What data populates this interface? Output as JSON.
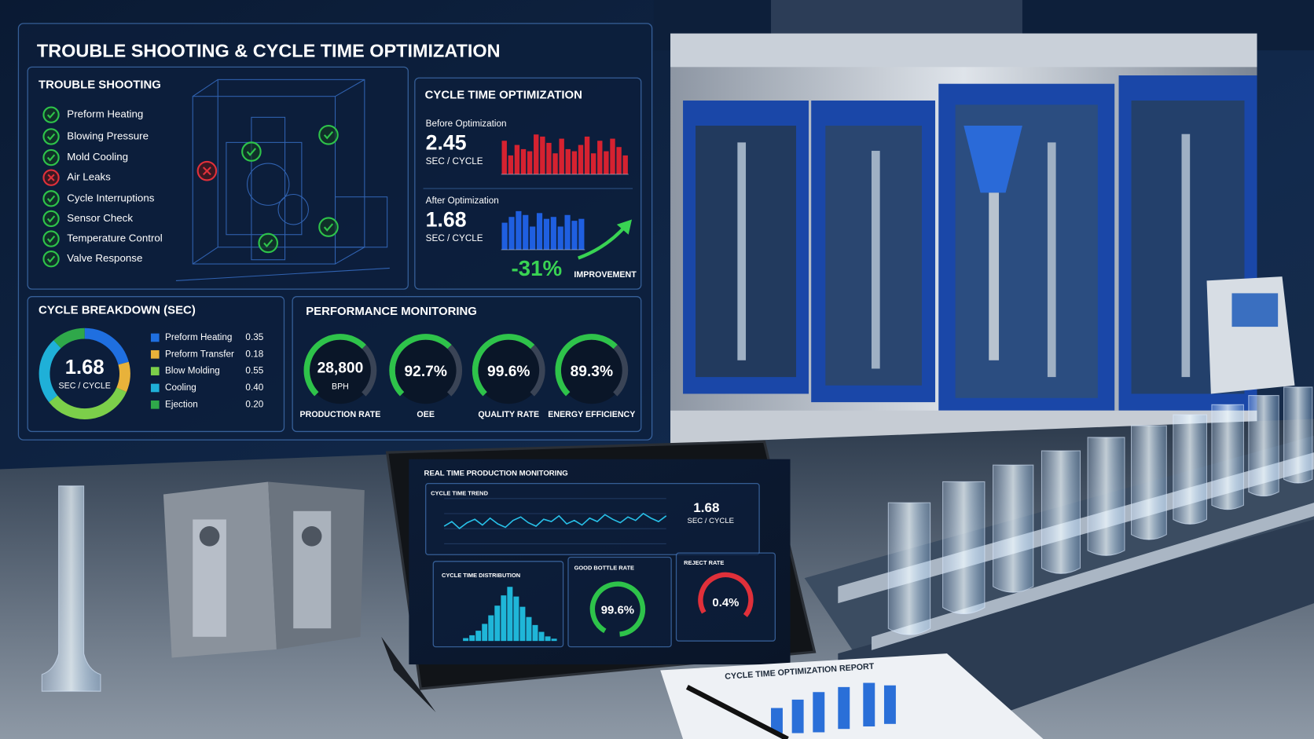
{
  "header": {
    "title": "TROUBLE SHOOTING & CYCLE TIME OPTIMIZATION"
  },
  "trouble_shooting": {
    "title": "TROUBLE SHOOTING",
    "items": [
      {
        "label": "Preform Heating",
        "status": "ok"
      },
      {
        "label": "Blowing Pressure",
        "status": "ok"
      },
      {
        "label": "Mold Cooling",
        "status": "ok"
      },
      {
        "label": "Air Leaks",
        "status": "fail"
      },
      {
        "label": "Cycle Interruptions",
        "status": "ok"
      },
      {
        "label": "Sensor Check",
        "status": "ok"
      },
      {
        "label": "Temperature Control",
        "status": "ok"
      },
      {
        "label": "Valve Response",
        "status": "ok"
      }
    ]
  },
  "cycle_time_optimization": {
    "title": "CYCLE TIME OPTIMIZATION",
    "before": {
      "label": "Before Optimization",
      "value": 2.45,
      "unit": "SEC / CYCLE",
      "color": "#d62230",
      "ylim": [
        0,
        100
      ],
      "bars": [
        80,
        45,
        70,
        60,
        55,
        95,
        90,
        75,
        50,
        85,
        60,
        55,
        70,
        90,
        50,
        80,
        55,
        85,
        65,
        45
      ]
    },
    "after": {
      "label": "After Optimization",
      "value": 1.68,
      "unit": "SEC / CYCLE",
      "color": "#1f5fe0",
      "ylim": [
        0,
        100
      ],
      "bars": [
        70,
        85,
        100,
        90,
        60,
        95,
        80,
        85,
        60,
        90,
        75,
        80
      ]
    },
    "change": "-31%",
    "change_label": "IMPROVEMENT"
  },
  "cycle_breakdown": {
    "title": "CYCLE BREAKDOWN (SEC)",
    "total": 1.68,
    "unit": "SEC / CYCLE",
    "categories": [
      "Preform Heating",
      "Preform Transfer",
      "Blow Molding",
      "Cooling",
      "Ejection"
    ],
    "values": [
      0.35,
      0.18,
      0.55,
      0.4,
      0.2
    ],
    "value_labels": [
      "0.35",
      "0.18",
      "0.55",
      "0.40",
      "0.20"
    ],
    "colors": [
      "#1f6fe0",
      "#e8b23a",
      "#7ccf4a",
      "#1fb0d8",
      "#2fa84a"
    ]
  },
  "performance_monitoring": {
    "title": "PERFORMANCE MONITORING",
    "gauges": [
      {
        "value": "28,800",
        "unit": "BPH",
        "label": "PRODUCTION RATE"
      },
      {
        "value": "92.7%",
        "label": "OEE"
      },
      {
        "value": "99.6%",
        "label": "QUALITY RATE"
      },
      {
        "value": "89.3%",
        "label": "ENERGY EFFICIENCY"
      }
    ]
  },
  "tablet": {
    "title": "REAL TIME PRODUCTION MONITORING",
    "trend": {
      "title": "CYCLE TIME TREND",
      "current": 1.68,
      "unit": "SEC / CYCLE",
      "ylim": [
        1.5,
        1.9
      ],
      "values": [
        1.66,
        1.7,
        1.64,
        1.69,
        1.72,
        1.67,
        1.73,
        1.68,
        1.65,
        1.71,
        1.74,
        1.69,
        1.66,
        1.72,
        1.7,
        1.75,
        1.68,
        1.71,
        1.67,
        1.73,
        1.7,
        1.76,
        1.72,
        1.69,
        1.74,
        1.71,
        1.77,
        1.73,
        1.7,
        1.75
      ]
    },
    "distribution": {
      "title": "CYCLE TIME DISTRIBUTION",
      "ylim": [
        0,
        100
      ],
      "counts": [
        5,
        10,
        18,
        30,
        45,
        62,
        80,
        95,
        78,
        60,
        42,
        28,
        16,
        8,
        4
      ]
    },
    "good_rate": {
      "title": "GOOD BOTTLE RATE",
      "value": "99.6%"
    },
    "reject_rate": {
      "title": "REJECT RATE",
      "value": "0.4%"
    }
  },
  "report": {
    "title": "CYCLE TIME OPTIMIZATION REPORT"
  }
}
